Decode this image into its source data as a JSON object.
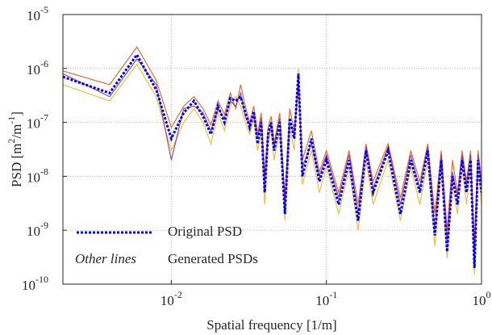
{
  "chart_data": {
    "type": "line",
    "log_x": true,
    "log_y": true,
    "grid": true,
    "xlabel": "Spatial frequency [1/m]",
    "ylabel_parts": [
      "PSD [m",
      "2",
      "/m",
      "-1",
      "]"
    ],
    "xlim": [
      0.002,
      1
    ],
    "ylim": [
      1e-10,
      1e-05
    ],
    "xticks": [
      {
        "value": 0.01,
        "label": "10",
        "exp": "-2"
      },
      {
        "value": 0.1,
        "label": "10",
        "exp": "-1"
      },
      {
        "value": 1,
        "label": "10",
        "exp": "0"
      }
    ],
    "yticks": [
      {
        "value": 1e-10,
        "label": "10",
        "exp": "-10"
      },
      {
        "value": 1e-09,
        "label": "10",
        "exp": "-9"
      },
      {
        "value": 1e-08,
        "label": "10",
        "exp": "-8"
      },
      {
        "value": 1e-07,
        "label": "10",
        "exp": "-7"
      },
      {
        "value": 1e-06,
        "label": "10",
        "exp": "-6"
      },
      {
        "value": 1e-05,
        "label": "10",
        "exp": "-5"
      }
    ],
    "x": [
      0.002,
      0.004,
      0.006,
      0.008,
      0.01,
      0.012,
      0.014,
      0.016,
      0.018,
      0.02,
      0.022,
      0.024,
      0.026,
      0.028,
      0.03,
      0.032,
      0.034,
      0.036,
      0.038,
      0.04,
      0.042,
      0.044,
      0.046,
      0.05,
      0.054,
      0.058,
      0.062,
      0.066,
      0.07,
      0.08,
      0.09,
      0.1,
      0.12,
      0.14,
      0.16,
      0.18,
      0.2,
      0.25,
      0.3,
      0.35,
      0.4,
      0.45,
      0.5,
      0.55,
      0.6,
      0.65,
      0.7,
      0.75,
      0.8,
      0.85,
      0.9,
      0.95,
      1.0
    ],
    "generated": {
      "name": "Generated PSDs",
      "sample_label": "Other lines",
      "colors": [
        "#d95319",
        "#edb120",
        "#7e2f8e"
      ],
      "values": [
        [
          9e-07,
          5e-07,
          2.5e-06,
          6e-07,
          8e-08,
          2e-07,
          3e-07,
          1.8e-07,
          9e-08,
          2.5e-07,
          1.4e-07,
          3.5e-07,
          1.8e-07,
          5e-07,
          2e-07,
          1e-07,
          2e-07,
          6e-08,
          1.5e-07,
          1e-08,
          8e-08,
          1.3e-07,
          4e-08,
          1.5e-07,
          4e-09,
          1.8e-07,
          7e-08,
          5e-07,
          2e-08,
          7e-08,
          1.2e-08,
          3e-08,
          5e-09,
          3e-08,
          3e-09,
          4e-08,
          8e-09,
          4e-08,
          4e-09,
          3e-08,
          8e-09,
          4e-08,
          2e-09,
          3e-08,
          1e-09,
          2e-08,
          5e-09,
          3e-08,
          8e-09,
          3e-08,
          6e-10,
          3e-08,
          8e-09
        ],
        [
          5e-07,
          2.5e-07,
          1.2e-06,
          3e-07,
          3e-08,
          1e-07,
          1.8e-07,
          1e-07,
          4e-08,
          1.5e-07,
          7e-08,
          2e-07,
          3e-07,
          2e-07,
          1e-07,
          6e-08,
          1.2e-07,
          3e-08,
          7e-08,
          3e-09,
          4e-08,
          7e-08,
          2e-08,
          7e-08,
          1.5e-09,
          8e-08,
          3e-08,
          1e-06,
          7e-09,
          3e-08,
          5e-09,
          1.5e-08,
          2e-09,
          1.4e-08,
          1e-09,
          2e-08,
          3e-09,
          2e-08,
          1.5e-09,
          1.5e-08,
          3e-09,
          2e-08,
          5e-10,
          1.5e-08,
          3e-10,
          7e-09,
          2e-09,
          1.5e-08,
          3e-09,
          1.5e-08,
          1.5e-10,
          1.5e-08,
          3e-09
        ],
        [
          8e-07,
          3e-07,
          1.5e-06,
          5e-07,
          2e-08,
          1.8e-07,
          2e-07,
          1.5e-07,
          7e-08,
          1.8e-07,
          1.2e-07,
          2.5e-07,
          2e-07,
          3.5e-07,
          1.3e-07,
          9e-08,
          1.4e-07,
          5e-08,
          1.2e-07,
          8e-09,
          5e-08,
          9e-08,
          3.5e-08,
          1.2e-07,
          3e-09,
          1e-07,
          6e-08,
          6e-07,
          1.5e-08,
          4e-08,
          1e-08,
          2.5e-08,
          4e-09,
          2.5e-08,
          2e-09,
          3.5e-08,
          6e-09,
          3.5e-08,
          3e-09,
          2.5e-08,
          6e-09,
          3.5e-08,
          1e-09,
          2.5e-08,
          6e-10,
          1.2e-08,
          4e-09,
          2.5e-08,
          6e-09,
          2.5e-08,
          3e-10,
          2.5e-08,
          6e-09
        ]
      ]
    },
    "series": [
      {
        "name": "Original PSD",
        "color": "#0000ff",
        "values": [
          7e-07,
          3.5e-07,
          1.8e-06,
          4e-07,
          5e-08,
          1.5e-07,
          2.5e-07,
          1.3e-07,
          6e-08,
          2e-07,
          1e-07,
          2.8e-07,
          2.5e-07,
          3e-07,
          1.5e-07,
          8e-08,
          1.6e-07,
          4e-08,
          1e-07,
          5e-09,
          6e-08,
          1e-07,
          3e-08,
          1e-07,
          2e-09,
          1.2e-07,
          5e-08,
          8e-07,
          1e-08,
          5e-08,
          8e-09,
          2e-08,
          3e-09,
          2e-08,
          1.5e-09,
          3e-08,
          5e-09,
          3e-08,
          2e-09,
          2e-08,
          5e-09,
          3e-08,
          8e-10,
          2e-08,
          4e-10,
          1e-08,
          3e-09,
          2e-08,
          5e-09,
          2e-08,
          2e-10,
          2e-08,
          5e-09
        ]
      }
    ]
  }
}
